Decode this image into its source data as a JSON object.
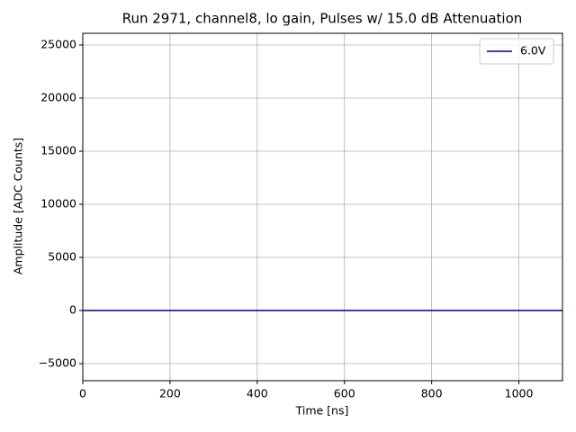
{
  "chart_data": {
    "type": "line",
    "title": "Run 2971, channel8, lo gain, Pulses w/ 15.0 dB Attenuation",
    "x_label": "Time [ns]",
    "y_label": "Amplitude [ADC Counts]",
    "x": [
      0,
      1100
    ],
    "series": [
      {
        "name": "6.0V",
        "color": "#000080",
        "values": [
          0,
          0
        ]
      }
    ],
    "xlim": [
      0,
      1100
    ],
    "xticks": [
      0,
      200,
      400,
      600,
      800,
      1000
    ],
    "ylim": [
      -6610,
      26100
    ],
    "yticks": [
      {
        "value": -5000,
        "label": "−5000"
      },
      0,
      5000,
      10000,
      15000,
      20000,
      25000
    ],
    "grid": true,
    "legend": "upper right"
  }
}
